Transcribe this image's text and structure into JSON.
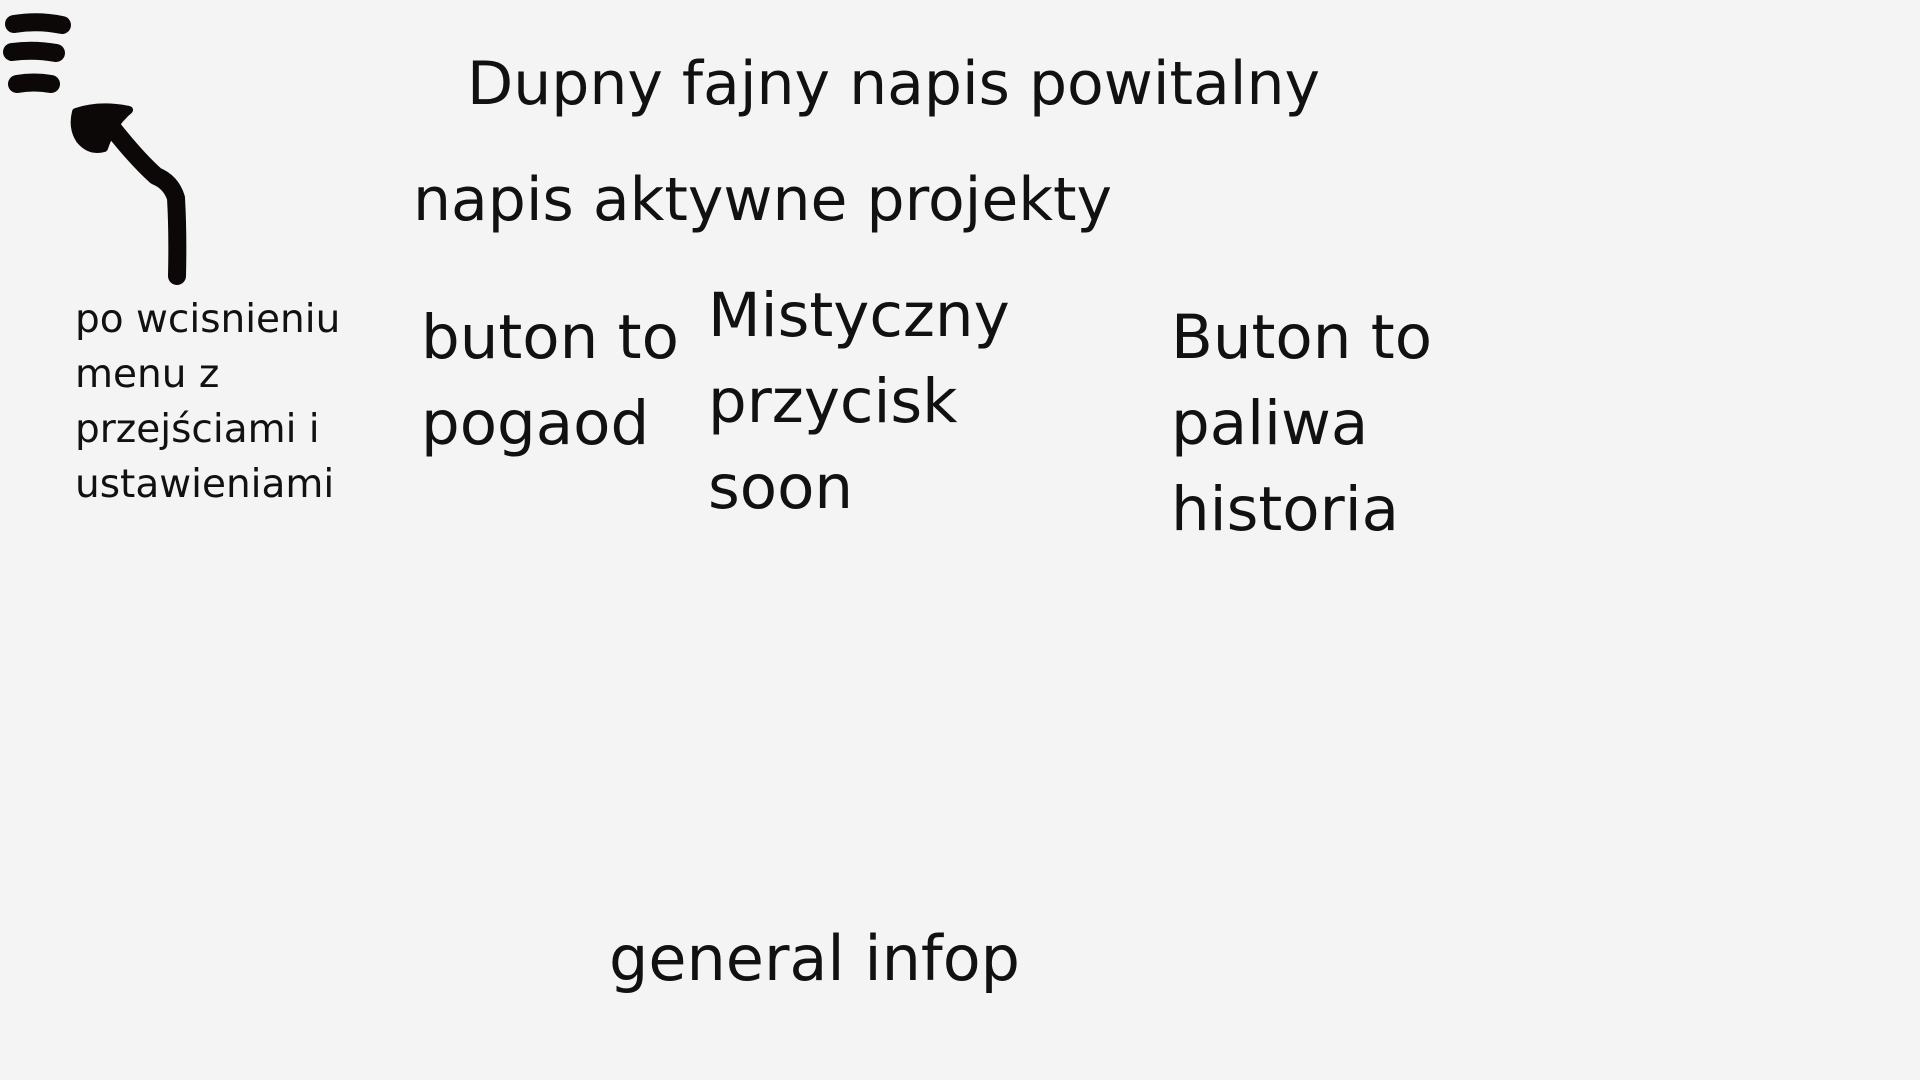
{
  "header": {
    "menu_icon": "hamburger-menu-icon",
    "welcome_text": "Dupny fajny napis powitalny"
  },
  "annotation": {
    "arrow_icon": "hand-drawn-arrow-icon",
    "note": "po wcisnieniu\nmenu z\nprzejściami i\nustawieniami"
  },
  "projects": {
    "title": "napis aktywne projekty",
    "buttons": [
      {
        "label": "buton to\npogaod"
      },
      {
        "label": "Mistyczny\nprzycisk\nsoon"
      },
      {
        "label": "Buton to\npaliwa\nhistoria"
      }
    ]
  },
  "footer": {
    "general_info": "general infop"
  },
  "colors": {
    "background": "#f4f4f4",
    "ink": "#111111"
  }
}
